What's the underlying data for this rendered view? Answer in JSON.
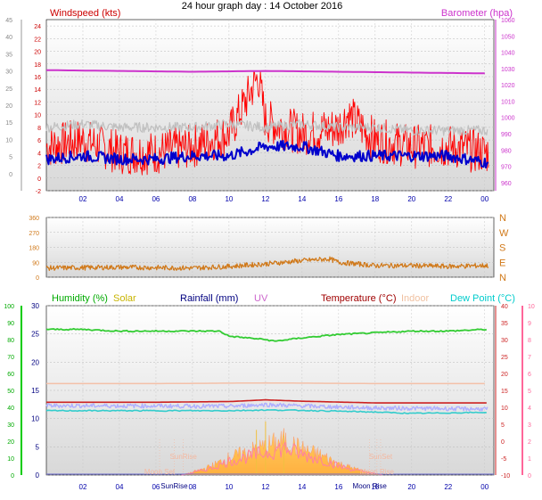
{
  "title": "24 hour graph day : 14 October 2016",
  "panels": {
    "wind": {
      "left_title": "Windspeed (kts)",
      "right_title": "Barometer (hpa)"
    },
    "bottom": {
      "labels": [
        {
          "text": "Humidity (%)",
          "color": "#00aa00"
        },
        {
          "text": "Solar",
          "color": "#c8b400"
        },
        {
          "text": "Rainfall (mm)",
          "color": "#000080"
        },
        {
          "text": "UV",
          "color": "#cc66cc"
        },
        {
          "text": "Temperature (°C)",
          "color": "#a00000"
        },
        {
          "text": "Indoor",
          "color": "#f0c0a0"
        },
        {
          "text": "Dew Point (°C)",
          "color": "#00cccc"
        }
      ],
      "events": [
        {
          "text": "Moon Set",
          "hour": 6.2
        },
        {
          "text": "SunRise",
          "hour": 7.5
        },
        {
          "text": "SunRise",
          "hour": 7.0
        },
        {
          "text": "SunSet",
          "hour": 18.3
        },
        {
          "text": "Moon Rise",
          "hour": 17.7
        },
        {
          "text": "Moon Rise",
          "hour": 18.1
        }
      ]
    }
  },
  "colors": {
    "wind": "#ff0000",
    "gust_avg": "#c0c0c0",
    "wind_avg": "#0000cc",
    "baro": "#cc33cc",
    "dir": "#d07818",
    "humidity": "#33cc33",
    "temperature": "#cc2222",
    "indoor": "#f4c0a8",
    "dewpoint": "#33cccc",
    "temp_band": "#b0b0ff",
    "solar": "#f0c040",
    "uv": "#ff80a0"
  },
  "chart_data": [
    {
      "type": "line",
      "x_ticks": [
        "02",
        "04",
        "06",
        "08",
        "10",
        "12",
        "14",
        "16",
        "18",
        "20",
        "22",
        "00"
      ],
      "x_tick_hours": [
        2,
        4,
        6,
        8,
        10,
        12,
        14,
        16,
        18,
        20,
        22,
        24
      ],
      "left_axis": {
        "ticks": [
          -2,
          0,
          2,
          4,
          6,
          8,
          10,
          12,
          14,
          16,
          18,
          20,
          22,
          24
        ],
        "range": [
          -2,
          25
        ]
      },
      "outer_axis": {
        "ticks": [
          0,
          5,
          10,
          15,
          20,
          25,
          30,
          35,
          40,
          45
        ],
        "range": [
          -5,
          45
        ]
      },
      "right_axis": {
        "ticks": [
          960,
          970,
          980,
          990,
          1000,
          1010,
          1020,
          1030,
          1040,
          1050,
          1060
        ],
        "range": [
          955,
          1060
        ]
      },
      "series": [
        {
          "key": "wind",
          "hours": [
            0,
            2,
            4,
            6,
            8,
            10,
            11.6,
            12,
            14,
            16,
            16.5,
            18,
            20,
            22,
            24
          ],
          "values": [
            5,
            6,
            4,
            4,
            5,
            7,
            16,
            9,
            7,
            8,
            10,
            6,
            5,
            5,
            4
          ]
        },
        {
          "key": "gust_avg",
          "hours": [
            0,
            2,
            4,
            6,
            8,
            10,
            12,
            14,
            16,
            18,
            20,
            22,
            24
          ],
          "values": [
            8,
            8.5,
            8,
            8,
            8,
            8.5,
            8,
            8.5,
            8,
            8,
            7.5,
            7.5,
            7.5
          ]
        },
        {
          "key": "wind_avg",
          "hours": [
            0,
            2,
            4,
            6,
            8,
            10,
            12,
            14,
            16,
            18,
            20,
            22,
            24
          ],
          "values": [
            3,
            3.5,
            3,
            3,
            3.5,
            3.5,
            5,
            5,
            3.5,
            3.5,
            3.5,
            3.5,
            2.5
          ]
        },
        {
          "key": "baro",
          "hours": [
            0,
            4,
            8,
            12,
            16,
            20,
            24
          ],
          "values": [
            1029,
            1028.5,
            1028,
            1028.5,
            1028,
            1027.5,
            1027
          ]
        }
      ]
    },
    {
      "type": "line",
      "left_axis": {
        "ticks": [
          0,
          90,
          180,
          270,
          360
        ],
        "range": [
          0,
          360
        ]
      },
      "right_axis": {
        "ticks": [
          "N",
          "W",
          "S",
          "E",
          "N"
        ]
      },
      "series": [
        {
          "key": "dir",
          "hours": [
            0,
            4,
            8,
            10,
            12,
            14,
            15.5,
            16,
            18,
            20,
            22,
            24
          ],
          "values": [
            55,
            60,
            55,
            65,
            80,
            100,
            110,
            90,
            70,
            70,
            65,
            70
          ]
        }
      ]
    },
    {
      "type": "line",
      "humidity_axis": {
        "ticks": [
          0,
          10,
          20,
          30,
          40,
          50,
          60,
          70,
          80,
          90,
          100
        ],
        "range": [
          0,
          100
        ]
      },
      "solar_axis": {
        "ticks": [
          0,
          5,
          10,
          15,
          20,
          25,
          30
        ],
        "range": [
          0,
          30
        ]
      },
      "temp_axis": {
        "ticks": [
          -10,
          -5,
          0,
          5,
          10,
          15,
          20,
          25,
          30,
          35,
          40
        ],
        "range": [
          -10,
          40
        ]
      },
      "uv_axis": {
        "ticks": [
          0,
          1,
          2,
          3,
          4,
          5,
          6,
          7,
          8,
          9,
          10
        ],
        "range": [
          0,
          10
        ]
      },
      "series": [
        {
          "key": "humidity",
          "hours": [
            0,
            2,
            4,
            6,
            8,
            9.5,
            10,
            12,
            12.5,
            14,
            16,
            18,
            20,
            22,
            24
          ],
          "values": [
            86,
            86,
            85,
            85,
            85,
            85,
            82,
            80,
            79,
            81,
            83,
            84,
            85,
            85,
            86
          ]
        },
        {
          "key": "indoor",
          "hours": [
            0,
            6,
            12,
            18,
            24
          ],
          "values": [
            17,
            17,
            17.2,
            17,
            17
          ]
        },
        {
          "key": "temperature",
          "hours": [
            0,
            6,
            10,
            12,
            14,
            18,
            24
          ],
          "values": [
            11.5,
            11.5,
            11.7,
            12.2,
            11.8,
            11.3,
            11.3
          ]
        },
        {
          "key": "temp_band",
          "hours": [
            0,
            6,
            10,
            12,
            14,
            18,
            24
          ],
          "values": [
            10.5,
            10.4,
            10.3,
            10.8,
            10.4,
            9.8,
            9.5
          ]
        },
        {
          "key": "dewpoint",
          "hours": [
            0,
            6,
            10,
            12,
            14,
            18,
            20,
            24
          ],
          "values": [
            9,
            9,
            9,
            9.2,
            9.1,
            8.6,
            8.2,
            8.5
          ]
        },
        {
          "key": "solar",
          "hours": [
            7.4,
            8,
            9,
            10,
            11,
            12,
            13,
            14,
            15,
            16,
            17,
            18,
            18.4
          ],
          "values": [
            0,
            0.5,
            1.5,
            3,
            4,
            5,
            6,
            4.5,
            3.5,
            2,
            1,
            0.3,
            0
          ]
        }
      ]
    }
  ]
}
